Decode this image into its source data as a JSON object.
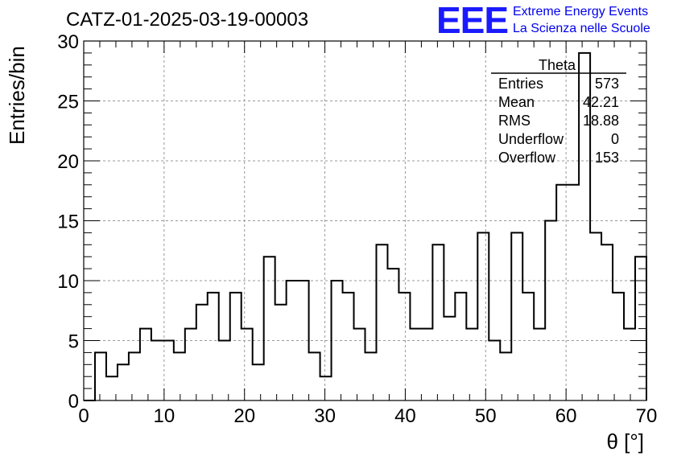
{
  "header": {
    "run_title": "CATZ-01-2025-03-19-00003",
    "logo_letters": "EEE",
    "org_line1": "Extreme Energy Events",
    "org_line2": "La Scienza nelle Scuole"
  },
  "stats": {
    "name": "Theta",
    "rows": [
      {
        "label": "Entries",
        "value": "573"
      },
      {
        "label": "Mean",
        "value": "42.21"
      },
      {
        "label": "RMS",
        "value": "18.88"
      },
      {
        "label": "Underflow",
        "value": "0"
      },
      {
        "label": "Overflow",
        "value": "153"
      }
    ]
  },
  "colors": {
    "logo": "#1a1aff",
    "org_text": "#0000ee",
    "line": "#000000",
    "grid": "#999999"
  },
  "chart_data": {
    "type": "histogram",
    "title": "CATZ-01-2025-03-19-00003",
    "xlabel": "θ [°]",
    "ylabel": "Entries/bin",
    "xlim": [
      0,
      70
    ],
    "ylim": [
      0,
      30
    ],
    "grid": true,
    "bin_width": 1.4,
    "bins_start": 0,
    "counts": [
      0,
      4,
      2,
      3,
      4,
      6,
      5,
      5,
      4,
      6,
      8,
      9,
      5,
      9,
      6,
      3,
      12,
      8,
      10,
      10,
      4,
      2,
      10,
      9,
      6,
      4,
      13,
      11,
      9,
      6,
      6,
      13,
      7,
      9,
      6,
      14,
      5,
      4,
      14,
      9,
      6,
      15,
      18,
      18,
      29,
      14,
      13,
      9,
      6,
      12
    ],
    "x_ticks": [
      "0",
      "10",
      "20",
      "30",
      "40",
      "50",
      "60",
      "70"
    ],
    "y_ticks": [
      "0",
      "5",
      "10",
      "15",
      "20",
      "25",
      "30"
    ]
  }
}
